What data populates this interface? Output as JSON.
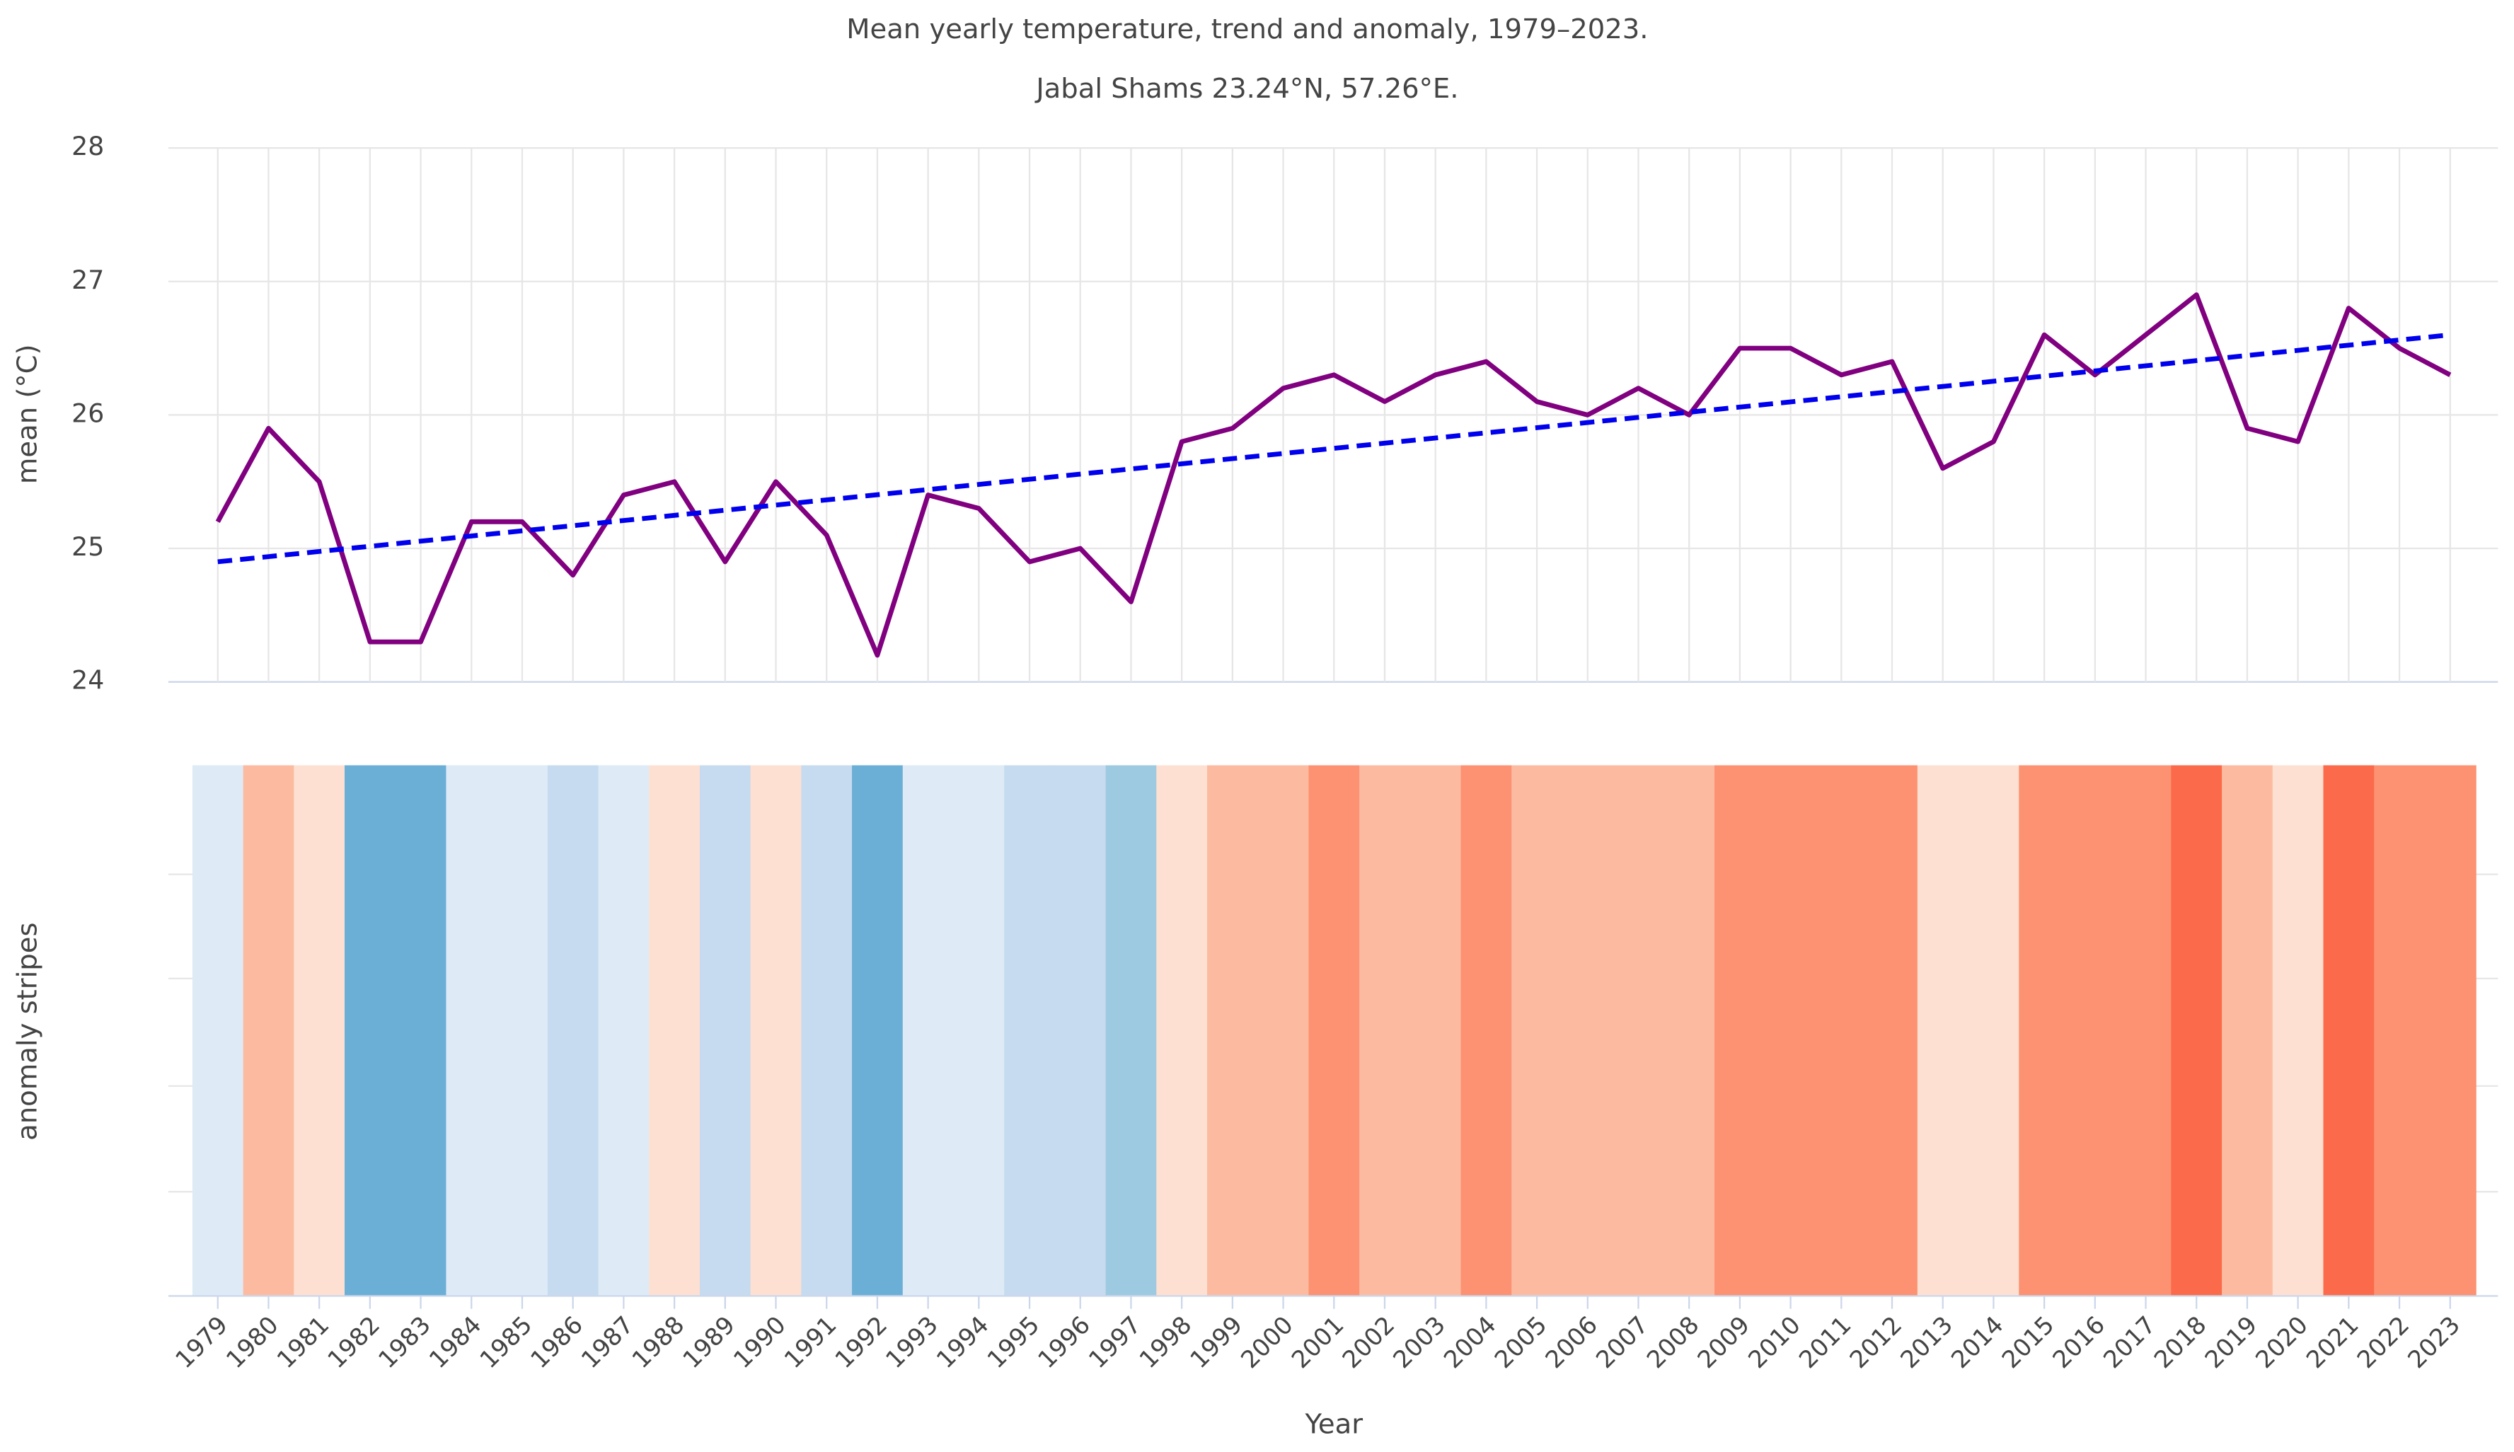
{
  "chart_data": {
    "type": "line",
    "title": "Mean yearly temperature, trend and anomaly, 1979–2023.",
    "subtitle": "Jabal Shams 23.24°N, 57.26°E.",
    "x_label": "Year",
    "y_label": "mean (°C)",
    "stripes_label": "anomaly stripes",
    "x": [
      1979,
      1980,
      1981,
      1982,
      1983,
      1984,
      1985,
      1986,
      1987,
      1988,
      1989,
      1990,
      1991,
      1992,
      1993,
      1994,
      1995,
      1996,
      1997,
      1998,
      1999,
      2000,
      2001,
      2002,
      2003,
      2004,
      2005,
      2006,
      2007,
      2008,
      2009,
      2010,
      2011,
      2012,
      2013,
      2014,
      2015,
      2016,
      2017,
      2018,
      2019,
      2020,
      2021,
      2022,
      2023
    ],
    "series": [
      {
        "color": "#800080",
        "values": [
          25.2,
          25.9,
          25.5,
          24.3,
          24.3,
          25.2,
          25.2,
          24.8,
          25.4,
          25.5,
          24.9,
          25.5,
          25.1,
          24.2,
          25.4,
          25.3,
          24.9,
          25.0,
          24.6,
          25.8,
          25.9,
          26.2,
          26.3,
          26.1,
          26.3,
          26.4,
          26.1,
          26.0,
          26.2,
          26.0,
          26.5,
          26.5,
          26.3,
          26.4,
          25.6,
          25.8,
          26.6,
          26.3,
          26.6,
          26.9,
          25.9,
          25.8,
          26.8,
          26.5,
          26.3
        ]
      }
    ],
    "trend": {
      "color": "#0000ee",
      "x": [
        1979,
        2023
      ],
      "values": [
        24.9,
        26.6
      ]
    },
    "stripe_colors": [
      "#deebf7",
      "#fcbba1",
      "#fee0d2",
      "#6baed6",
      "#6baed6",
      "#deebf7",
      "#deebf7",
      "#c6dbef",
      "#deebf7",
      "#fee0d2",
      "#c6dbef",
      "#fee0d2",
      "#c6dbef",
      "#6baed6",
      "#deebf7",
      "#deebf7",
      "#c6dbef",
      "#c6dbef",
      "#9ecae1",
      "#fee0d2",
      "#fcbba1",
      "#fcbba1",
      "#fc9272",
      "#fcbba1",
      "#fcbba1",
      "#fc9272",
      "#fcbba1",
      "#fcbba1",
      "#fcbba1",
      "#fcbba1",
      "#fc9272",
      "#fc9272",
      "#fc9272",
      "#fc9272",
      "#fee0d2",
      "#fee0d2",
      "#fc9272",
      "#fc9272",
      "#fc9272",
      "#fb6a4a",
      "#fcbba1",
      "#fee0d2",
      "#fb6a4a",
      "#fc9272",
      "#fc9272"
    ],
    "xlim": [
      1978.5,
      2023.5
    ],
    "ylim": [
      24,
      28
    ],
    "yticks": [
      24,
      25,
      26,
      27,
      28
    ],
    "grid": true
  }
}
